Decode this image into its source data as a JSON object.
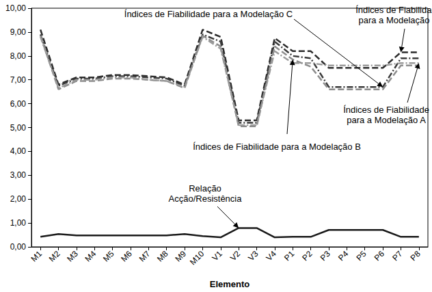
{
  "chart_data": {
    "type": "line",
    "xlabel": "Elemento",
    "categories": [
      "M1",
      "M2",
      "M3",
      "M4",
      "M5",
      "M6",
      "M7",
      "M8",
      "M9",
      "M10",
      "V1",
      "V2",
      "V3",
      "V4",
      "P1",
      "P2",
      "P3",
      "P4",
      "P5",
      "P6",
      "P7",
      "P8"
    ],
    "ylim": [
      0,
      10
    ],
    "yticks": [
      {
        "value": 0,
        "label": "0,00"
      },
      {
        "value": 1,
        "label": "1,00"
      },
      {
        "value": 2,
        "label": "2,00"
      },
      {
        "value": 3,
        "label": "3,00"
      },
      {
        "value": 4,
        "label": "4,00"
      },
      {
        "value": 5,
        "label": "5,00"
      },
      {
        "value": 6,
        "label": "6,00"
      },
      {
        "value": 7,
        "label": "7,00"
      },
      {
        "value": 8,
        "label": "8,00"
      },
      {
        "value": 9,
        "label": "9,00"
      },
      {
        "value": 10,
        "label": "10,00"
      }
    ],
    "grid": false,
    "series": [
      {
        "name": "Relação\nAcção/Resistência",
        "color": "#1a1a1a",
        "line_style": "solid",
        "values": [
          0.42,
          0.54,
          0.48,
          0.48,
          0.48,
          0.48,
          0.48,
          0.48,
          0.54,
          0.45,
          0.4,
          0.79,
          0.79,
          0.4,
          0.42,
          0.42,
          0.71,
          0.71,
          0.71,
          0.71,
          0.42,
          0.42
        ]
      },
      {
        "name": "Índices de Fiabilidade\npara a Modelação A",
        "color": "#9a9a9a",
        "line_style": "dashdot",
        "values": [
          8.8,
          6.65,
          7.0,
          7.0,
          7.1,
          7.1,
          7.0,
          6.95,
          6.7,
          8.8,
          8.3,
          5.1,
          5.1,
          8.2,
          7.7,
          7.7,
          7.6,
          7.6,
          7.6,
          7.6,
          7.7,
          7.7
        ]
      },
      {
        "name": "Índices de Fiabilidade para a Modelação B",
        "color": "#8c8c8c",
        "line_style": "dashed",
        "values": [
          8.85,
          6.6,
          6.95,
          6.95,
          7.05,
          7.05,
          7.0,
          6.95,
          6.65,
          8.85,
          8.4,
          5.05,
          5.05,
          8.4,
          7.85,
          7.55,
          6.6,
          6.6,
          6.6,
          6.6,
          7.6,
          7.6
        ]
      },
      {
        "name": "Índices de Fiabilidade para a Modelação C",
        "color": "#3a3a3a",
        "line_style": "dashdot",
        "values": [
          8.9,
          6.75,
          7.05,
          7.05,
          7.15,
          7.15,
          7.1,
          7.05,
          6.75,
          8.9,
          8.6,
          5.2,
          5.2,
          8.6,
          8.0,
          7.9,
          6.7,
          6.7,
          6.7,
          6.7,
          7.9,
          7.9
        ]
      },
      {
        "name": "Índices de Fiabilidade\npara a Modelação D",
        "color": "#2b2b2b",
        "line_style": "dashed",
        "values": [
          9.1,
          6.8,
          7.1,
          7.1,
          7.2,
          7.2,
          7.15,
          7.1,
          6.8,
          9.1,
          8.8,
          5.3,
          5.3,
          8.75,
          8.2,
          8.2,
          7.5,
          7.5,
          7.5,
          7.5,
          8.15,
          8.15
        ]
      }
    ]
  }
}
